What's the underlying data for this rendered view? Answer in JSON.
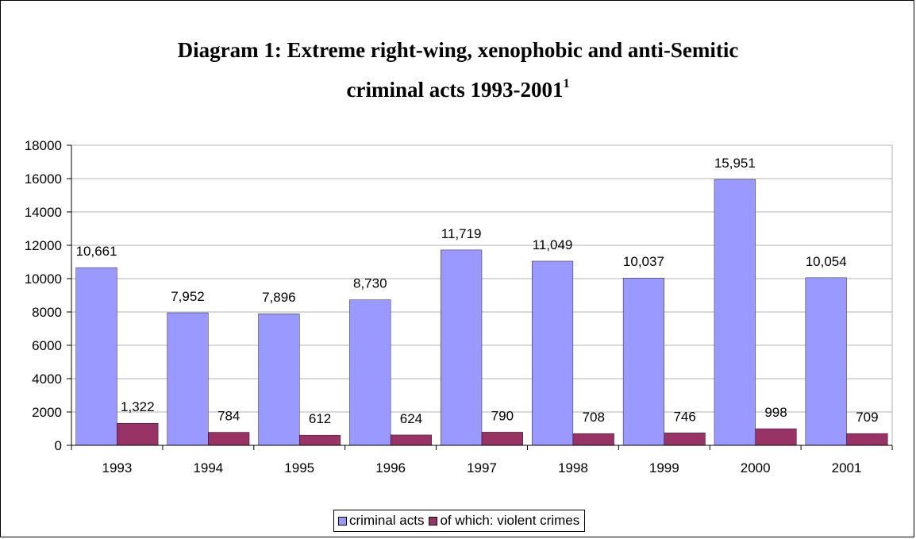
{
  "chart_data": {
    "type": "bar",
    "title_line1": "Diagram 1: Extreme right-wing, xenophobic and anti-Semitic",
    "title_line2": "criminal acts 1993-2001",
    "title_footnote": "1",
    "categories": [
      "1993",
      "1994",
      "1995",
      "1996",
      "1997",
      "1998",
      "1999",
      "2000",
      "2001"
    ],
    "series": [
      {
        "name": "criminal acts",
        "color": "#9999ff",
        "values": [
          10661,
          7952,
          7896,
          8730,
          11719,
          11049,
          10037,
          15951,
          10054
        ],
        "labels": [
          "10,661",
          "7,952",
          "7,896",
          "8,730",
          "11,719",
          "11,049",
          "10,037",
          "15,951",
          "10,054"
        ]
      },
      {
        "name": "of which: violent crimes",
        "color": "#993366",
        "values": [
          1322,
          784,
          612,
          624,
          790,
          708,
          746,
          998,
          709
        ],
        "labels": [
          "1,322",
          "784",
          "612",
          "624",
          "790",
          "708",
          "746",
          "998",
          "709"
        ]
      }
    ],
    "yticks": [
      "0",
      "2000",
      "4000",
      "6000",
      "8000",
      "10000",
      "12000",
      "14000",
      "16000",
      "18000"
    ],
    "ylim": [
      0,
      18000
    ],
    "grid": true,
    "legend_position": "bottom"
  }
}
